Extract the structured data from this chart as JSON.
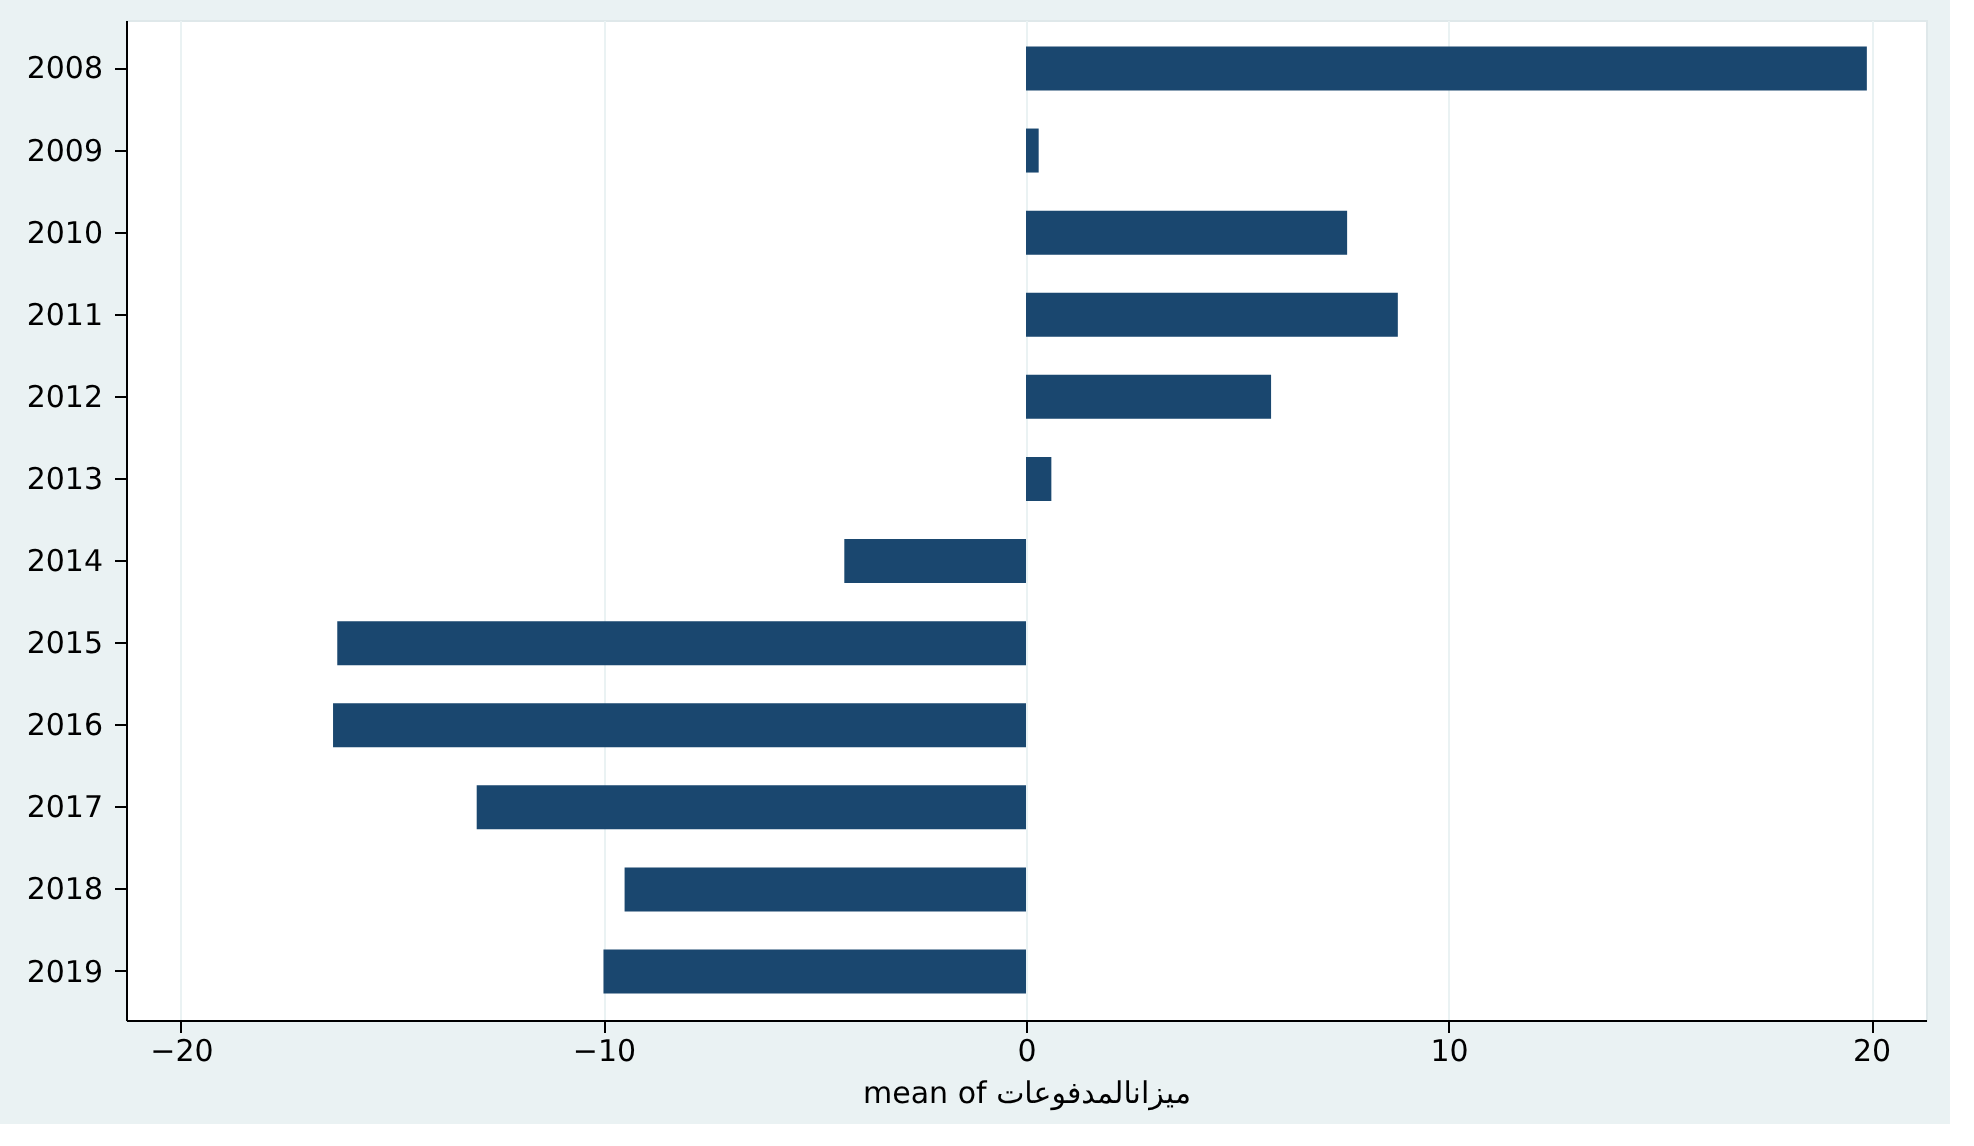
{
  "chart_data": {
    "type": "bar",
    "orientation": "horizontal",
    "xlabel": "mean of ميزانالمدفوعات",
    "categories": [
      "2008",
      "2009",
      "2010",
      "2011",
      "2012",
      "2013",
      "2014",
      "2015",
      "2016",
      "2017",
      "2018",
      "2019"
    ],
    "values": [
      19.9,
      0.3,
      7.6,
      8.8,
      5.8,
      0.6,
      -4.3,
      -16.3,
      -16.4,
      -13.0,
      -9.5,
      -10.0
    ],
    "color": "#1a476f",
    "xlim": [
      -21.3,
      21.3
    ],
    "xticks": [
      -20,
      -10,
      0,
      10,
      20
    ],
    "grid": "x"
  }
}
